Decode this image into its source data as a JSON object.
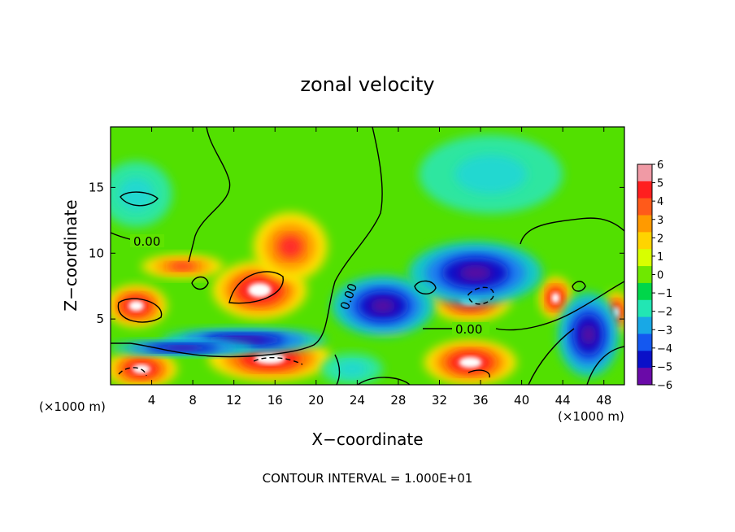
{
  "chart_data": {
    "type": "heatmap",
    "title": "zonal velocity",
    "xlabel": "X−coordinate",
    "ylabel": "Z−coordinate",
    "x_unit": "(×1000 m)",
    "footer": "CONTOUR INTERVAL = 1.000E+01",
    "x_ticks": [
      4,
      8,
      12,
      16,
      20,
      24,
      28,
      32,
      36,
      40,
      44,
      48
    ],
    "y_ticks": [
      5,
      10,
      15
    ],
    "xlim": [
      0,
      50
    ],
    "ylim": [
      0,
      19.6
    ],
    "contour_label": "0.00",
    "colorbar": {
      "ticks": [
        6,
        5,
        4,
        3,
        2,
        1,
        0,
        -1,
        -2,
        -3,
        -4,
        -5,
        -6
      ],
      "range": [
        -6,
        6
      ],
      "colors": [
        "#f09aa5",
        "#ff1f1f",
        "#ff5a1a",
        "#ff9a00",
        "#ffd400",
        "#d8ff00",
        "#6fe800",
        "#00d64a",
        "#22e6b4",
        "#18a8e6",
        "#1458f0",
        "#0a10c8",
        "#6a0aa8"
      ]
    },
    "features": [
      {
        "kind": "positive",
        "peak": "white",
        "x": 2.5,
        "z": 6.0,
        "rx": 3.0,
        "rz": 1.6
      },
      {
        "kind": "positive",
        "peak": "white",
        "x": 14.5,
        "z": 7.2,
        "rx": 4.6,
        "rz": 2.2
      },
      {
        "kind": "positive",
        "peak": "red",
        "x": 17.5,
        "z": 10.5,
        "rx": 3.6,
        "rz": 2.6
      },
      {
        "kind": "positive",
        "peak": "white",
        "x": 15.5,
        "z": 2.0,
        "rx": 6.0,
        "rz": 1.7
      },
      {
        "kind": "positive",
        "peak": "white",
        "x": 3.0,
        "z": 1.2,
        "rx": 3.5,
        "rz": 1.4
      },
      {
        "kind": "positive",
        "peak": "white",
        "x": 35.0,
        "z": 6.5,
        "rx": 4.0,
        "rz": 1.7
      },
      {
        "kind": "positive",
        "peak": "white",
        "x": 35.0,
        "z": 1.7,
        "rx": 4.5,
        "rz": 1.7
      },
      {
        "kind": "positive",
        "peak": "white",
        "x": 43.3,
        "z": 6.6,
        "rx": 1.6,
        "rz": 1.6
      },
      {
        "kind": "positive",
        "peak": "white",
        "x": 27.0,
        "z": 4.8,
        "rx": 2.0,
        "rz": 0.9
      },
      {
        "kind": "positive",
        "peak": "red",
        "x": 7.0,
        "z": 9.0,
        "rx": 4.0,
        "rz": 0.9
      },
      {
        "kind": "positive",
        "peak": "white",
        "x": 49.2,
        "z": 5.5,
        "rx": 1.2,
        "rz": 1.6
      },
      {
        "kind": "negative",
        "peak": "blue",
        "x": 26.5,
        "z": 6.0,
        "rx": 5.0,
        "rz": 2.3
      },
      {
        "kind": "negative",
        "peak": "blue",
        "x": 35.5,
        "z": 8.5,
        "rx": 6.5,
        "rz": 2.4
      },
      {
        "kind": "negative",
        "peak": "blue",
        "x": 13.0,
        "z": 3.4,
        "rx": 8.0,
        "rz": 0.9
      },
      {
        "kind": "negative",
        "peak": "blue",
        "x": 7.0,
        "z": 2.8,
        "rx": 7.0,
        "rz": 0.6
      },
      {
        "kind": "negative",
        "peak": "blue",
        "x": 46.5,
        "z": 3.8,
        "rx": 3.0,
        "rz": 3.2
      },
      {
        "kind": "negative",
        "peak": "cyan",
        "x": 2.5,
        "z": 14.5,
        "rx": 3.5,
        "rz": 2.5
      },
      {
        "kind": "negative",
        "peak": "cyan",
        "x": 37.0,
        "z": 16.0,
        "rx": 7.0,
        "rz": 3.0
      },
      {
        "kind": "negative",
        "peak": "cyan",
        "x": 23.5,
        "z": 1.2,
        "rx": 3.0,
        "rz": 1.2
      }
    ]
  }
}
